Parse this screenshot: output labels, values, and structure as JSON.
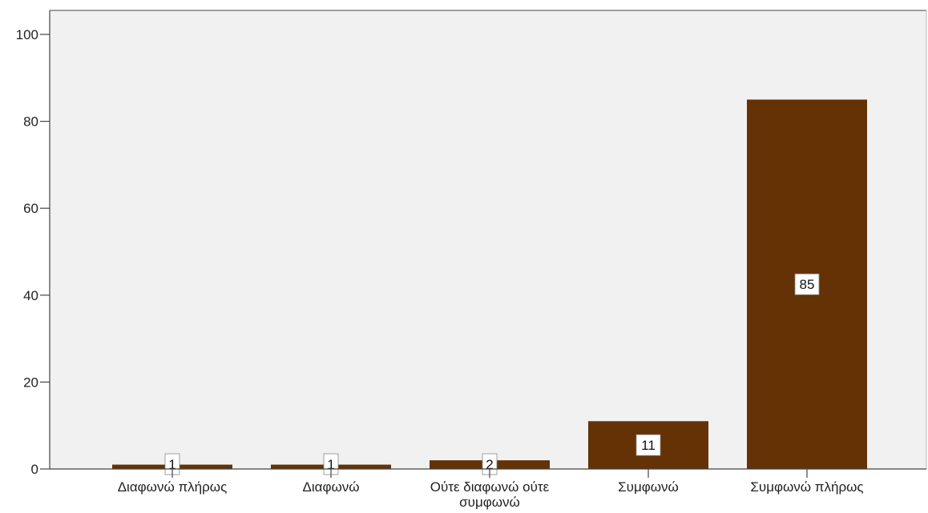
{
  "chart_data": {
    "type": "bar",
    "categories": [
      "Διαφωνώ πλήρως",
      "Διαφωνώ",
      "Ούτε διαφωνώ ούτε συμφωνώ",
      "Συμφωνώ",
      "Συμφωνώ πλήρως"
    ],
    "category_lines": [
      [
        "Διαφωνώ πλήρως"
      ],
      [
        "Διαφωνώ"
      ],
      [
        "Ούτε διαφωνώ ούτε",
        "συμφωνώ"
      ],
      [
        "Συμφωνώ"
      ],
      [
        "Συμφωνώ πλήρως"
      ]
    ],
    "values": [
      1,
      1,
      2,
      11,
      85
    ],
    "data_labels": [
      "1",
      "1",
      "2",
      "11",
      "85"
    ],
    "yticks": [
      0,
      20,
      40,
      60,
      80,
      100
    ],
    "ylim": [
      0,
      100
    ],
    "bar_color": "#643205",
    "plot_background": "#f1f1f1",
    "grid": false
  }
}
